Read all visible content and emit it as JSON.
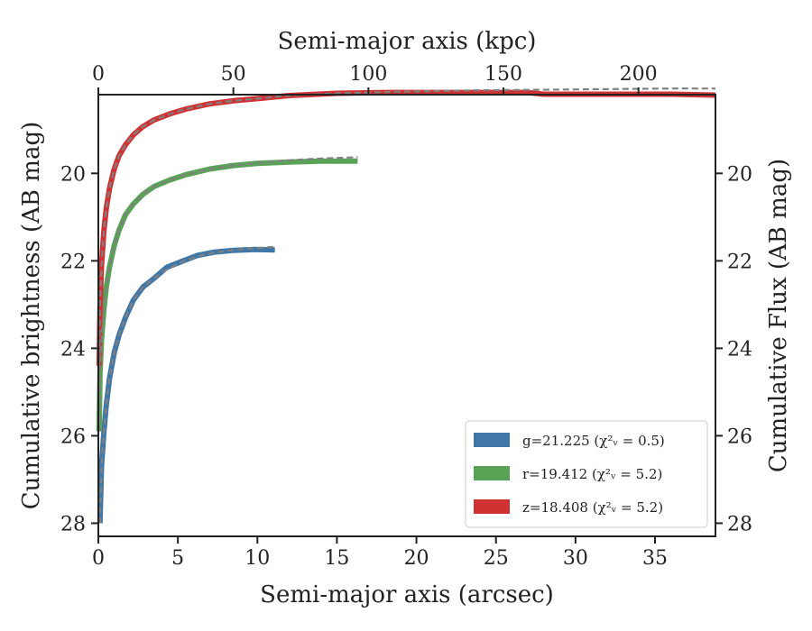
{
  "chart_data": {
    "type": "line",
    "title": "",
    "xlabel": "Semi-major axis (arcsec)",
    "ylabel": "Cumulative brightness (AB mag)",
    "top_xlabel": "Semi-major axis (kpc)",
    "right_ylabel": "Cumulative Flux (AB mag)",
    "xlim": [
      0,
      38.8
    ],
    "ylim": [
      28.3,
      18.2
    ],
    "y_inverted": true,
    "top_xlim": [
      0,
      228.5
    ],
    "xticks": [
      0,
      5,
      10,
      15,
      20,
      25,
      30,
      35
    ],
    "xtick_labels": [
      "0",
      "5",
      "10",
      "15",
      "20",
      "25",
      "30",
      "35"
    ],
    "top_xticks": [
      0,
      50,
      100,
      150,
      200
    ],
    "top_xtick_labels": [
      "0",
      "50",
      "100",
      "150",
      "200"
    ],
    "yticks": [
      20,
      22,
      24,
      26,
      28
    ],
    "ytick_labels": [
      "20",
      "22",
      "24",
      "26",
      "28"
    ],
    "right_yticks": [
      20,
      22,
      24,
      26,
      28
    ],
    "right_ytick_labels": [
      "20",
      "22",
      "24",
      "26",
      "28"
    ],
    "grid": false,
    "legend_position": "bottom-right",
    "legend": [
      "g=21.225 (χ²ᵥ = 0.5)",
      "r=19.412 (χ²ᵥ = 5.2)",
      "z=18.408 (χ²ᵥ = 5.2)"
    ],
    "series": [
      {
        "name": "g=21.225 (χ²ᵥ = 0.5)",
        "color": "#3f77a8",
        "x": [
          0.1,
          0.2,
          0.35,
          0.5,
          0.7,
          1.0,
          1.3,
          1.7,
          2.2,
          2.8,
          3.5,
          4.3,
          5.2,
          6.2,
          7.3,
          8.5,
          9.8,
          11.1
        ],
        "y": [
          28.0,
          26.7,
          25.9,
          25.3,
          24.7,
          24.1,
          23.7,
          23.3,
          22.9,
          22.6,
          22.4,
          22.15,
          22.02,
          21.88,
          21.8,
          21.76,
          21.74,
          21.75
        ]
      },
      {
        "name": "r=19.412 (χ²ᵥ = 5.2)",
        "color": "#58a356",
        "x": [
          0.05,
          0.1,
          0.2,
          0.35,
          0.5,
          0.7,
          1.0,
          1.3,
          1.7,
          2.2,
          2.8,
          3.5,
          4.5,
          5.5,
          7.0,
          8.5,
          10.0,
          12.0,
          14.0,
          16.3
        ],
        "y": [
          25.9,
          24.6,
          23.8,
          23.1,
          22.6,
          22.15,
          21.65,
          21.3,
          20.95,
          20.7,
          20.48,
          20.3,
          20.15,
          20.03,
          19.9,
          19.82,
          19.77,
          19.74,
          19.72,
          19.72
        ]
      },
      {
        "name": "z=18.408 (χ²ᵥ = 5.2)",
        "color": "#d03234",
        "x": [
          0.05,
          0.1,
          0.2,
          0.35,
          0.5,
          0.7,
          1.0,
          1.3,
          1.7,
          2.2,
          2.8,
          3.5,
          4.5,
          5.5,
          7.0,
          8.5,
          10.0,
          12.0,
          15.0,
          18.0,
          21.0,
          24.0,
          27.0,
          28.0,
          30.0,
          33.0,
          36.0,
          38.8
        ],
        "y": [
          24.4,
          23.1,
          22.1,
          21.3,
          20.8,
          20.35,
          19.9,
          19.6,
          19.35,
          19.12,
          18.93,
          18.78,
          18.64,
          18.53,
          18.41,
          18.34,
          18.29,
          18.22,
          18.17,
          18.15,
          18.15,
          18.15,
          18.15,
          18.19,
          18.19,
          18.19,
          18.19,
          18.21
        ]
      }
    ],
    "model_curves": [
      {
        "color": "#808080",
        "x": [
          0.1,
          0.2,
          0.35,
          0.5,
          0.7,
          1.0,
          1.3,
          1.7,
          2.2,
          2.8,
          3.5,
          4.3,
          5.2,
          6.2,
          7.3,
          8.5,
          9.8,
          11.2
        ],
        "y": [
          28.0,
          26.7,
          25.9,
          25.3,
          24.7,
          24.1,
          23.7,
          23.3,
          22.9,
          22.6,
          22.4,
          22.2,
          22.03,
          21.9,
          21.81,
          21.75,
          21.71,
          21.68
        ]
      },
      {
        "color": "#808080",
        "x": [
          0.05,
          0.1,
          0.2,
          0.35,
          0.5,
          0.7,
          1.0,
          1.3,
          1.7,
          2.2,
          2.8,
          3.5,
          4.5,
          5.5,
          7.0,
          8.5,
          10.0,
          12.0,
          14.0,
          16.3
        ],
        "y": [
          25.9,
          24.6,
          23.8,
          23.1,
          22.6,
          22.15,
          21.65,
          21.3,
          20.95,
          20.7,
          20.48,
          20.3,
          20.15,
          20.03,
          19.9,
          19.82,
          19.76,
          19.7,
          19.66,
          19.63
        ]
      },
      {
        "color": "#808080",
        "x": [
          0.05,
          0.1,
          0.2,
          0.35,
          0.5,
          0.7,
          1.0,
          1.3,
          1.7,
          2.2,
          2.8,
          3.5,
          4.5,
          5.5,
          7.0,
          8.5,
          10.0,
          12.0,
          15.0,
          18.0,
          21.0,
          24.0,
          27.0,
          30.0,
          33.0,
          36.0,
          38.8
        ],
        "y": [
          24.4,
          23.1,
          22.1,
          21.3,
          20.8,
          20.35,
          19.9,
          19.6,
          19.35,
          19.12,
          18.93,
          18.78,
          18.64,
          18.53,
          18.41,
          18.34,
          18.29,
          18.22,
          18.17,
          18.14,
          18.12,
          18.1,
          18.09,
          18.08,
          18.07,
          18.06,
          18.06
        ]
      }
    ]
  }
}
